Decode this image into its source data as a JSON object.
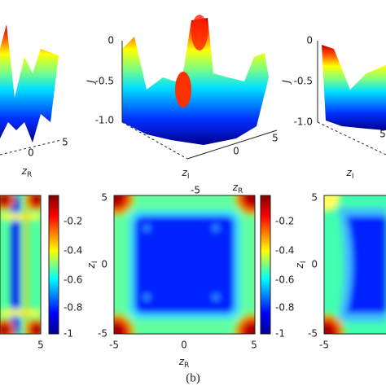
{
  "top_left": {
    "x_ticks": [
      "0",
      "5"
    ],
    "x_label": {
      "main": "z",
      "sub": "R"
    }
  },
  "top_middle": {
    "z_ticks": [
      "0",
      "-0.5",
      "-1.0"
    ],
    "z_label": "J",
    "x_ticks": [
      "-5",
      "0",
      "5"
    ],
    "x_label": {
      "main": "z",
      "sub": "R"
    },
    "y_label": {
      "main": "z",
      "sub": "I"
    }
  },
  "top_right": {
    "z_ticks": [
      "0",
      "-0.5",
      "-1.0"
    ],
    "z_label": "J",
    "y_label": {
      "main": "z",
      "sub": "I"
    },
    "x_ticks": [
      "5"
    ]
  },
  "bottom_left": {
    "x_ticks": [
      "5"
    ],
    "colorbar_ticks": [
      "-0.2",
      "-0.4",
      "-0.6",
      "-0.8",
      "-1"
    ]
  },
  "bottom_middle": {
    "y_ticks": [
      "5",
      "0",
      "-5"
    ],
    "y_label": {
      "main": "z",
      "sub": "I"
    },
    "x_ticks": [
      "-5",
      "0",
      "5"
    ],
    "x_label": {
      "main": "z",
      "sub": "R"
    },
    "colorbar_ticks": [
      "-0.2",
      "-0.4",
      "-0.6",
      "-0.8",
      "-1"
    ]
  },
  "bottom_right": {
    "y_ticks": [
      "5",
      "0",
      "-5"
    ],
    "y_label": {
      "main": "z",
      "sub": "I"
    },
    "x_ticks": [
      "-5"
    ]
  },
  "caption": "(b)"
}
